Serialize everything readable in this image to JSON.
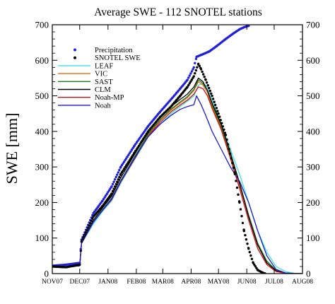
{
  "chart_data": {
    "type": "line",
    "title": "Average SWE - 112 SNOTEL stations",
    "ylabel": "SWE [mm]",
    "xlabel": "",
    "ylim": [
      0,
      700
    ],
    "xlim": [
      0,
      274
    ],
    "y_ticks": [
      0,
      100,
      200,
      300,
      400,
      500,
      600,
      700
    ],
    "y_tick_labels": [
      "0",
      "100",
      "200",
      "300",
      "400",
      "500",
      "600",
      "700"
    ],
    "x_ticks": [
      0,
      30,
      61,
      92,
      121,
      152,
      182,
      213,
      243,
      274
    ],
    "x_tick_labels": [
      "NOV07",
      "DEC07",
      "JAN08",
      "FEB08",
      "MAR08",
      "APR08",
      "MAY08",
      "JUN08",
      "JUL08",
      "AUG08"
    ],
    "legend_placement": "upper-left",
    "grid": false,
    "series": [
      {
        "name": "Precipitation",
        "style": "dots",
        "color": "#2020dd",
        "x": [
          0,
          15,
          30,
          32,
          45,
          55,
          65,
          75,
          90,
          105,
          118,
          130,
          140,
          148,
          155,
          158,
          163,
          172,
          180,
          190,
          198,
          205,
          210,
          215
        ],
        "y": [
          22,
          25,
          30,
          95,
          170,
          205,
          245,
          300,
          360,
          415,
          455,
          490,
          520,
          545,
          580,
          610,
          615,
          625,
          640,
          660,
          675,
          687,
          693,
          697
        ]
      },
      {
        "name": "SNOTEL SWE",
        "style": "dots",
        "color": "#000000",
        "x": [
          0,
          15,
          30,
          32,
          45,
          55,
          65,
          75,
          90,
          105,
          118,
          130,
          140,
          148,
          155,
          160,
          163,
          168,
          175,
          182,
          190,
          200,
          205,
          210,
          215,
          220,
          225,
          230,
          233
        ],
        "y": [
          20,
          18,
          25,
          90,
          160,
          190,
          225,
          280,
          340,
          400,
          440,
          470,
          500,
          525,
          555,
          590,
          575,
          545,
          500,
          450,
          390,
          280,
          200,
          120,
          70,
          30,
          10,
          3,
          0
        ]
      },
      {
        "name": "LEAF",
        "style": "line",
        "color": "#40e0e0",
        "x": [
          0,
          15,
          30,
          32,
          45,
          55,
          65,
          75,
          90,
          105,
          118,
          130,
          140,
          148,
          155,
          160,
          165,
          170,
          175,
          185,
          195,
          205,
          215,
          225,
          235,
          245,
          255,
          265,
          274
        ],
        "y": [
          20,
          18,
          22,
          85,
          140,
          175,
          205,
          255,
          320,
          385,
          420,
          450,
          470,
          485,
          500,
          530,
          535,
          525,
          490,
          420,
          350,
          280,
          200,
          120,
          60,
          20,
          6,
          1,
          0
        ]
      },
      {
        "name": "VIC",
        "style": "line",
        "color": "#e66a10",
        "x": [
          0,
          15,
          30,
          32,
          45,
          55,
          65,
          75,
          90,
          105,
          118,
          130,
          140,
          148,
          155,
          160,
          165,
          170,
          175,
          185,
          195,
          205,
          215,
          225,
          235,
          245,
          255,
          265,
          274
        ],
        "y": [
          20,
          18,
          22,
          85,
          145,
          180,
          210,
          260,
          325,
          390,
          430,
          460,
          480,
          495,
          515,
          540,
          530,
          510,
          470,
          410,
          330,
          250,
          160,
          80,
          30,
          8,
          2,
          0,
          0
        ]
      },
      {
        "name": "SAST",
        "style": "line",
        "color": "#1f7a1f",
        "x": [
          0,
          15,
          30,
          32,
          45,
          55,
          65,
          75,
          90,
          105,
          118,
          130,
          140,
          148,
          155,
          160,
          165,
          170,
          175,
          185,
          195,
          205,
          215,
          225,
          235,
          245,
          255,
          265,
          274
        ],
        "y": [
          20,
          18,
          22,
          85,
          145,
          180,
          212,
          262,
          328,
          393,
          432,
          463,
          483,
          498,
          518,
          545,
          535,
          515,
          475,
          415,
          335,
          255,
          165,
          85,
          35,
          10,
          2,
          0,
          0
        ]
      },
      {
        "name": "CLM",
        "style": "line",
        "color": "#000000",
        "x": [
          0,
          15,
          30,
          32,
          45,
          55,
          65,
          75,
          90,
          105,
          118,
          130,
          140,
          148,
          155,
          160,
          165,
          170,
          175,
          185,
          195,
          205,
          215,
          225,
          235,
          245,
          255,
          265,
          274
        ],
        "y": [
          20,
          18,
          22,
          85,
          150,
          185,
          218,
          270,
          335,
          400,
          440,
          470,
          490,
          505,
          525,
          550,
          540,
          515,
          480,
          420,
          340,
          255,
          160,
          80,
          30,
          8,
          1,
          0,
          0
        ]
      },
      {
        "name": "Noah-MP",
        "style": "line",
        "color": "#cc1111",
        "x": [
          0,
          15,
          30,
          32,
          45,
          55,
          65,
          75,
          90,
          105,
          118,
          130,
          140,
          148,
          155,
          160,
          165,
          170,
          175,
          185,
          195,
          205,
          215,
          225,
          235,
          245,
          255,
          265,
          274
        ],
        "y": [
          20,
          18,
          22,
          85,
          145,
          178,
          208,
          258,
          322,
          387,
          425,
          455,
          474,
          488,
          505,
          525,
          520,
          500,
          465,
          405,
          325,
          240,
          150,
          70,
          25,
          6,
          1,
          0,
          0
        ]
      },
      {
        "name": "Noah",
        "style": "line",
        "color": "#1a1acc",
        "x": [
          0,
          15,
          30,
          32,
          45,
          55,
          65,
          75,
          90,
          105,
          118,
          130,
          140,
          148,
          155,
          158,
          163,
          168,
          175,
          185,
          195,
          205,
          215,
          225,
          235,
          245,
          255,
          265,
          274
        ],
        "y": [
          20,
          18,
          22,
          85,
          145,
          178,
          210,
          260,
          325,
          385,
          420,
          445,
          462,
          470,
          475,
          500,
          475,
          445,
          400,
          350,
          300,
          260,
          200,
          120,
          50,
          12,
          2,
          0,
          0
        ]
      }
    ]
  }
}
